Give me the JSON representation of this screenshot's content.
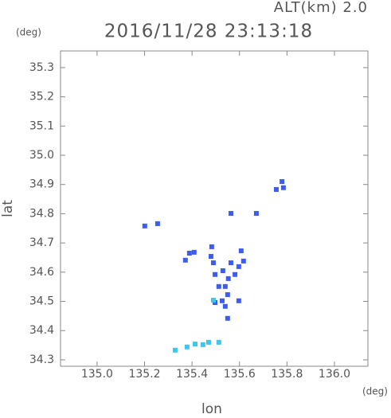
{
  "chart_data": {
    "type": "scatter",
    "title": "2016/11/28 23:13:18",
    "subtitle": "ALT(km) 2.0",
    "y_unit": "(deg)",
    "x_unit": "(deg)",
    "xlabel": "lon",
    "ylabel": "lat",
    "xlim": [
      134.846,
      136.141
    ],
    "ylim": [
      34.278,
      35.357
    ],
    "xticks": [
      {
        "value": 135.0,
        "label": "135.0"
      },
      135.2,
      135.4,
      135.6,
      135.8,
      {
        "value": 136.0,
        "label": "136.0"
      }
    ],
    "yticks": [
      35.3,
      35.2,
      35.1,
      {
        "value": 35.0,
        "label": "35.0"
      },
      34.9,
      34.8,
      34.7,
      34.6,
      34.5,
      34.4,
      34.3
    ],
    "series": [
      {
        "color": "#3d5cf0",
        "x": [
          135.201,
          135.255,
          135.389,
          135.409,
          135.372,
          135.48,
          135.49,
          135.483,
          135.497,
          135.53,
          135.564,
          135.581,
          135.607,
          135.597,
          135.54,
          135.513,
          135.55,
          135.527,
          135.54,
          135.497,
          135.597,
          135.55,
          135.564,
          135.671,
          135.755,
          135.785,
          135.779,
          135.617,
          135.553
        ],
        "y": [
          34.758,
          34.766,
          34.665,
          34.668,
          34.641,
          34.654,
          34.632,
          34.687,
          34.592,
          34.605,
          34.632,
          34.592,
          34.673,
          34.619,
          34.551,
          34.551,
          34.523,
          34.502,
          34.483,
          34.496,
          34.502,
          34.442,
          34.801,
          34.801,
          34.883,
          34.889,
          34.91,
          34.638,
          34.578
        ]
      },
      {
        "color": "#40c4f0",
        "x": [
          135.329,
          135.379,
          135.413,
          135.446,
          135.49,
          135.47,
          135.513
        ],
        "y": [
          34.333,
          34.344,
          34.354,
          34.352,
          34.504,
          34.36,
          34.36
        ]
      }
    ]
  }
}
